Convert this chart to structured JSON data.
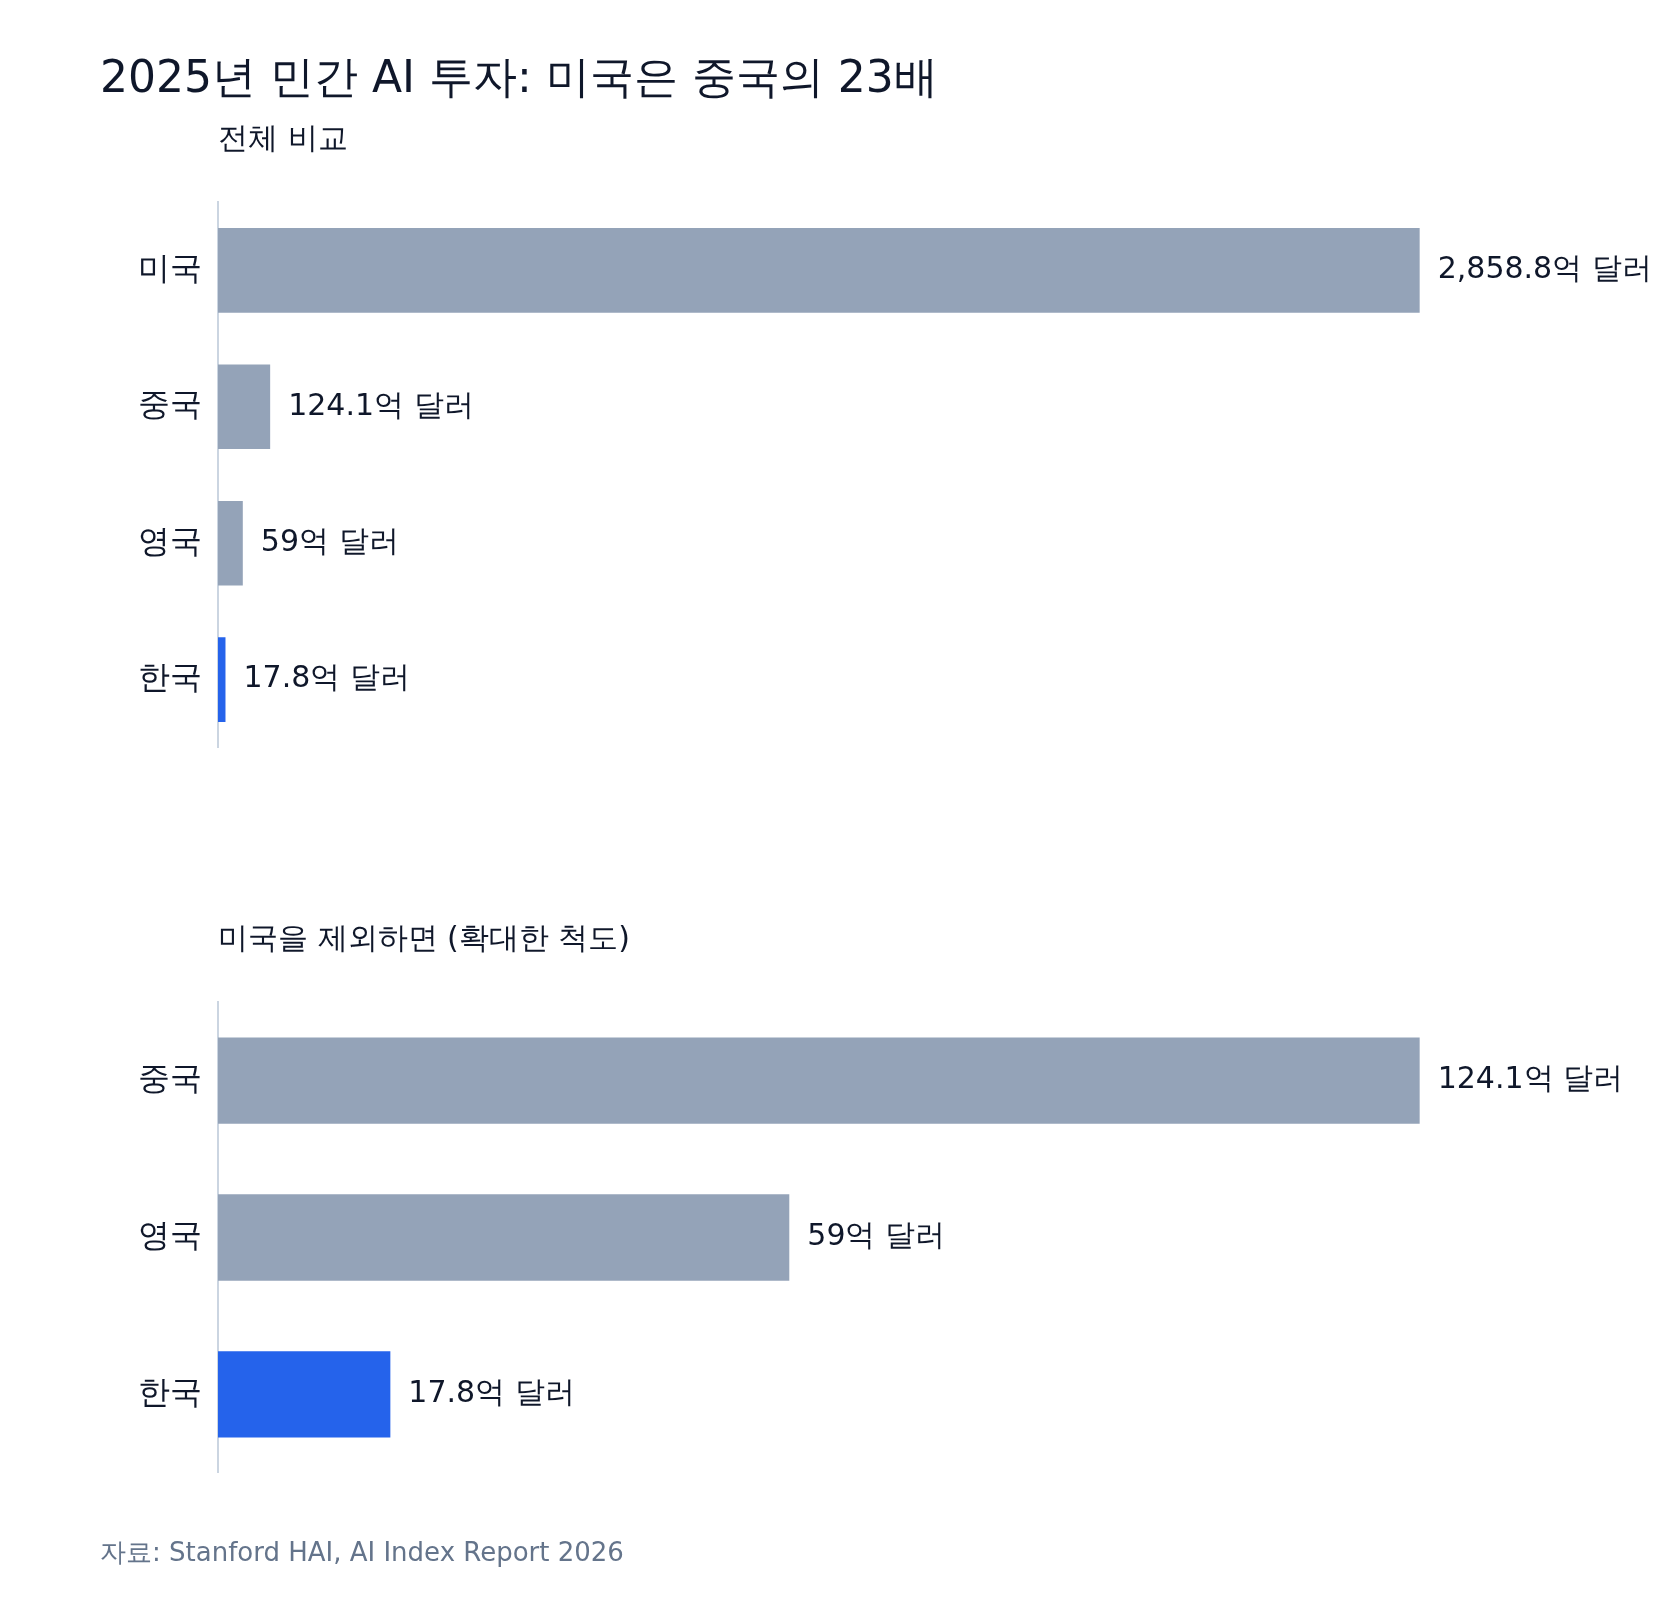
{
  "chart_data": [
    {
      "type": "bar",
      "orientation": "horizontal",
      "title": "2025년 민간 AI 투자: 미국은 중국의 23배",
      "subtitle": "전체 비교",
      "categories": [
        "미국",
        "중국",
        "영국",
        "한국"
      ],
      "values": [
        2858.8,
        124.1,
        59,
        17.8
      ],
      "colors": [
        "#94a3b8",
        "#94a3b8",
        "#94a3b8",
        "#2563eb"
      ],
      "value_labels": [
        "2,858.8억 달러",
        "124.1억 달러",
        "59억 달러",
        "17.8억 달러"
      ]
    },
    {
      "type": "bar",
      "orientation": "horizontal",
      "subtitle": "미국을 제외하면 (확대한 척도)",
      "categories": [
        "중국",
        "영국",
        "한국"
      ],
      "values": [
        124.1,
        59,
        17.8
      ],
      "colors": [
        "#94a3b8",
        "#94a3b8",
        "#2563eb"
      ],
      "value_labels": [
        "124.1억 달러",
        "59억 달러",
        "17.8억 달러"
      ],
      "annotations": [
        "자료: Stanford HAI, AI Index Report 2026"
      ]
    }
  ]
}
